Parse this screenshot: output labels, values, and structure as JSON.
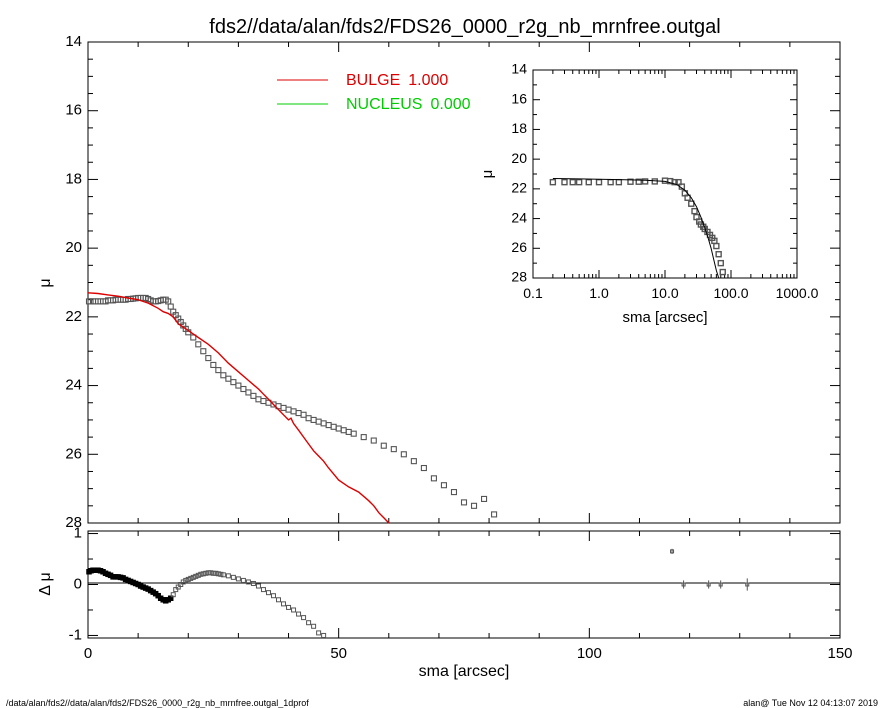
{
  "title": "fds2//data/alan/fds2/FDS26_0000_r2g_nb_mrnfree.outgal",
  "footer": {
    "left": "/data/alan/fds2//data/alan/fds2/FDS26_0000_r2g_nb_mrnfree.outgal_1dprof",
    "right": "alan@  Tue Nov 12 04:13:07 2019"
  },
  "colors": {
    "bulge": "#dd0000",
    "nucleus": "#00cc00",
    "data": "#555555",
    "axis": "#000000"
  },
  "chart_data": [
    {
      "id": "main",
      "type": "scatter",
      "title": "",
      "xlabel": "",
      "ylabel": "μ",
      "xlim": [
        0,
        150
      ],
      "ylim": [
        28,
        14
      ],
      "y_inverted": true,
      "yticks": [
        "14",
        "16",
        "18",
        "20",
        "22",
        "24",
        "26",
        "28"
      ],
      "legend": [
        {
          "name": "BULGE",
          "value": "1.000",
          "color": "#dd0000"
        },
        {
          "name": "NUCLEUS",
          "value": "0.000",
          "color": "#00cc00"
        }
      ],
      "legend_position": "top-center",
      "series": [
        {
          "name": "data",
          "style": "open-squares",
          "x": [
            0.2,
            0.5,
            1,
            1.5,
            2,
            2.5,
            3,
            3.5,
            4,
            4.5,
            5,
            5.5,
            6,
            6.5,
            7,
            7.5,
            8,
            8.5,
            9,
            9.5,
            10,
            10.5,
            11,
            11.5,
            12,
            12.5,
            13,
            13.5,
            14,
            14.5,
            15,
            15.5,
            16,
            16.5,
            17,
            17.5,
            18,
            18.5,
            19,
            19.5,
            20,
            21,
            22,
            23,
            24,
            25,
            26,
            27,
            28,
            29,
            30,
            31,
            32,
            33,
            34,
            35,
            36,
            37,
            38,
            39,
            40,
            41,
            42,
            43,
            44,
            45,
            46,
            47,
            48,
            49,
            50,
            51,
            52,
            53,
            55,
            57,
            59,
            61,
            63,
            65,
            67,
            69,
            71,
            73,
            75,
            77,
            79,
            81
          ],
          "y": [
            21.55,
            21.55,
            21.55,
            21.55,
            21.55,
            21.55,
            21.55,
            21.55,
            21.52,
            21.52,
            21.52,
            21.5,
            21.5,
            21.5,
            21.5,
            21.5,
            21.48,
            21.48,
            21.47,
            21.46,
            21.45,
            21.45,
            21.45,
            21.45,
            21.48,
            21.52,
            21.55,
            21.55,
            21.54,
            21.52,
            21.5,
            21.5,
            21.55,
            21.7,
            21.85,
            21.95,
            22.05,
            22.15,
            22.25,
            22.35,
            22.45,
            22.6,
            22.8,
            23.0,
            23.2,
            23.4,
            23.55,
            23.7,
            23.8,
            23.9,
            24.0,
            24.1,
            24.2,
            24.3,
            24.4,
            24.45,
            24.5,
            24.55,
            24.6,
            24.65,
            24.7,
            24.75,
            24.8,
            24.85,
            24.95,
            25.0,
            25.05,
            25.1,
            25.15,
            25.2,
            25.25,
            25.3,
            25.35,
            25.4,
            25.5,
            25.6,
            25.75,
            25.85,
            26.0,
            26.2,
            26.4,
            26.7,
            26.9,
            27.1,
            27.4,
            27.5,
            27.3,
            27.75
          ]
        },
        {
          "name": "BULGE",
          "style": "line",
          "color": "#dd0000",
          "x": [
            0,
            2,
            4,
            6,
            8,
            10,
            12,
            14,
            15,
            16,
            17,
            18,
            19,
            20,
            22,
            24,
            26,
            28,
            30,
            32,
            34,
            35,
            36,
            37,
            38,
            39,
            40,
            40.5,
            41,
            42,
            43,
            44,
            45,
            46,
            47,
            48,
            50,
            52,
            54,
            56,
            57,
            58,
            59,
            60
          ],
          "y": [
            21.3,
            21.32,
            21.36,
            21.4,
            21.45,
            21.5,
            21.6,
            21.75,
            21.85,
            21.9,
            22.0,
            22.2,
            22.3,
            22.4,
            22.6,
            22.8,
            23.05,
            23.35,
            23.6,
            23.85,
            24.1,
            24.25,
            24.4,
            24.55,
            24.7,
            24.85,
            25.0,
            24.95,
            25.1,
            25.3,
            25.5,
            25.7,
            25.9,
            26.05,
            26.2,
            26.4,
            26.75,
            26.95,
            27.1,
            27.35,
            27.5,
            27.7,
            27.85,
            28.0
          ]
        }
      ]
    },
    {
      "id": "inset",
      "type": "scatter",
      "title": "",
      "xscale": "log",
      "xlim": [
        0.1,
        1000
      ],
      "ylim": [
        28,
        14
      ],
      "y_inverted": true,
      "xlabel": "sma [arcsec]",
      "ylabel": "μ",
      "xticks": [
        "0.1",
        "1.0",
        "10.0",
        "100.0",
        "1000.0"
      ],
      "yticks": [
        "14",
        "16",
        "18",
        "20",
        "22",
        "24",
        "26",
        "28"
      ],
      "series": [
        {
          "name": "data",
          "style": "open-squares",
          "x": [
            0.2,
            0.3,
            0.4,
            0.5,
            0.7,
            1,
            1.5,
            2,
            3,
            4,
            5,
            7,
            10,
            12,
            14,
            16,
            18,
            20,
            22,
            25,
            28,
            30,
            33,
            35,
            38,
            40,
            44,
            48,
            52,
            56,
            60,
            65,
            70,
            75
          ],
          "y": [
            21.55,
            21.55,
            21.55,
            21.55,
            21.55,
            21.55,
            21.55,
            21.55,
            21.52,
            21.52,
            21.5,
            21.5,
            21.45,
            21.48,
            21.55,
            21.55,
            21.85,
            22.3,
            22.6,
            23.0,
            23.5,
            23.9,
            24.2,
            24.4,
            24.55,
            24.7,
            24.9,
            25.1,
            25.3,
            25.5,
            25.85,
            26.4,
            27.0,
            27.6
          ]
        },
        {
          "name": "model",
          "style": "line",
          "x": [
            0.2,
            0.5,
            1,
            2,
            5,
            10,
            15,
            20,
            25,
            30,
            35,
            40,
            45,
            50,
            55,
            60,
            65,
            70
          ],
          "y": [
            21.3,
            21.33,
            21.35,
            21.38,
            21.42,
            21.5,
            21.7,
            22.1,
            22.6,
            23.2,
            23.9,
            24.6,
            25.3,
            26.0,
            26.8,
            27.5,
            28.0,
            28.4
          ]
        }
      ]
    },
    {
      "id": "residual",
      "type": "scatter",
      "title": "",
      "xlabel": "sma [arcsec]",
      "ylabel": "Δ μ",
      "xlim": [
        0,
        150
      ],
      "ylim": [
        -1.05,
        1.05
      ],
      "xticks": [
        "0",
        "50",
        "100",
        "150"
      ],
      "yticks": [
        "1",
        "0",
        "-1"
      ],
      "series": [
        {
          "name": "residual",
          "style": "open-squares",
          "x": [
            0.2,
            0.6,
            1,
            1.5,
            2,
            2.5,
            3,
            3.5,
            4,
            4.5,
            5,
            5.5,
            6,
            6.5,
            7,
            7.5,
            8,
            8.5,
            9,
            9.5,
            10,
            10.5,
            11,
            11.5,
            12,
            12.5,
            13,
            13.5,
            14,
            14.5,
            15,
            15.5,
            16,
            16.5,
            17,
            17.5,
            18,
            18.5,
            19,
            19.5,
            20,
            20.5,
            21,
            21.5,
            22,
            22.5,
            23,
            23.5,
            24,
            24.5,
            25,
            25.5,
            26,
            26.5,
            27,
            28,
            29,
            30,
            31,
            32,
            33,
            34,
            35,
            36,
            37,
            38,
            39,
            40,
            41,
            42,
            43,
            44,
            45,
            46,
            47
          ],
          "y": [
            0.25,
            0.27,
            0.28,
            0.28,
            0.28,
            0.27,
            0.25,
            0.22,
            0.2,
            0.18,
            0.15,
            0.15,
            0.15,
            0.14,
            0.13,
            0.1,
            0.08,
            0.06,
            0.04,
            0.02,
            0,
            -0.03,
            -0.05,
            -0.07,
            -0.09,
            -0.12,
            -0.15,
            -0.18,
            -0.22,
            -0.27,
            -0.3,
            -0.32,
            -0.3,
            -0.27,
            -0.2,
            -0.1,
            -0.05,
            0,
            0.05,
            0.08,
            0.1,
            0.12,
            0.14,
            0.16,
            0.18,
            0.2,
            0.21,
            0.22,
            0.23,
            0.23,
            0.22,
            0.22,
            0.21,
            0.2,
            0.19,
            0.17,
            0.14,
            0.11,
            0.08,
            0.05,
            0.02,
            -0.03,
            -0.1,
            -0.16,
            -0.22,
            -0.3,
            -0.38,
            -0.45,
            -0.5,
            -0.58,
            -0.65,
            -0.75,
            -0.82,
            -0.95,
            -1.0
          ]
        },
        {
          "name": "outliers",
          "style": "error-points",
          "x": [
            116.5,
            118.8,
            123.8,
            126.2,
            131.5
          ],
          "y": [
            0.65,
            0,
            0,
            0,
            0
          ],
          "err": [
            0.05,
            0.08,
            0.08,
            0.08,
            0.12
          ]
        }
      ]
    }
  ]
}
